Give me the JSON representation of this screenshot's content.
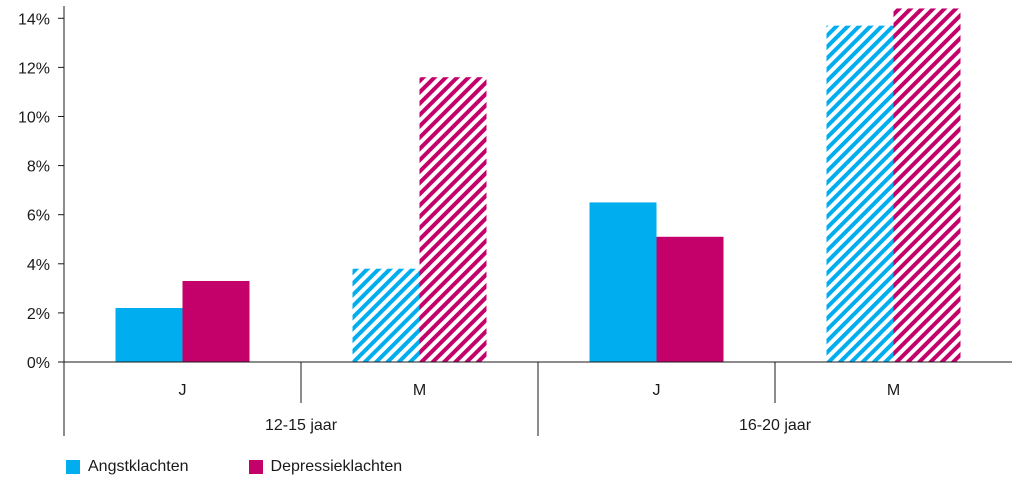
{
  "chart_data": {
    "type": "bar",
    "y_axis": {
      "ticks": [
        "0%",
        "2%",
        "4%",
        "6%",
        "8%",
        "10%",
        "12%",
        "14%"
      ],
      "tick_values": [
        0,
        2,
        4,
        6,
        8,
        10,
        12,
        14
      ],
      "ylim": [
        0,
        14.5
      ],
      "unit": "%"
    },
    "groups": [
      {
        "label": "12-15 jaar",
        "subgroups": [
          {
            "label": "J",
            "values": [
              2.2,
              3.3
            ],
            "hatched": false
          },
          {
            "label": "M",
            "values": [
              3.8,
              11.6
            ],
            "hatched": true
          }
        ]
      },
      {
        "label": "16-20 jaar",
        "subgroups": [
          {
            "label": "J",
            "values": [
              6.5,
              5.1
            ],
            "hatched": false
          },
          {
            "label": "M",
            "values": [
              13.7,
              14.4
            ],
            "hatched": true
          }
        ]
      }
    ],
    "series": [
      {
        "name": "Angstklachten",
        "color": "#00aeef"
      },
      {
        "name": "Depressieklachten",
        "color": "#c4006a"
      }
    ],
    "grid": false,
    "legend_position": "bottom-left"
  }
}
